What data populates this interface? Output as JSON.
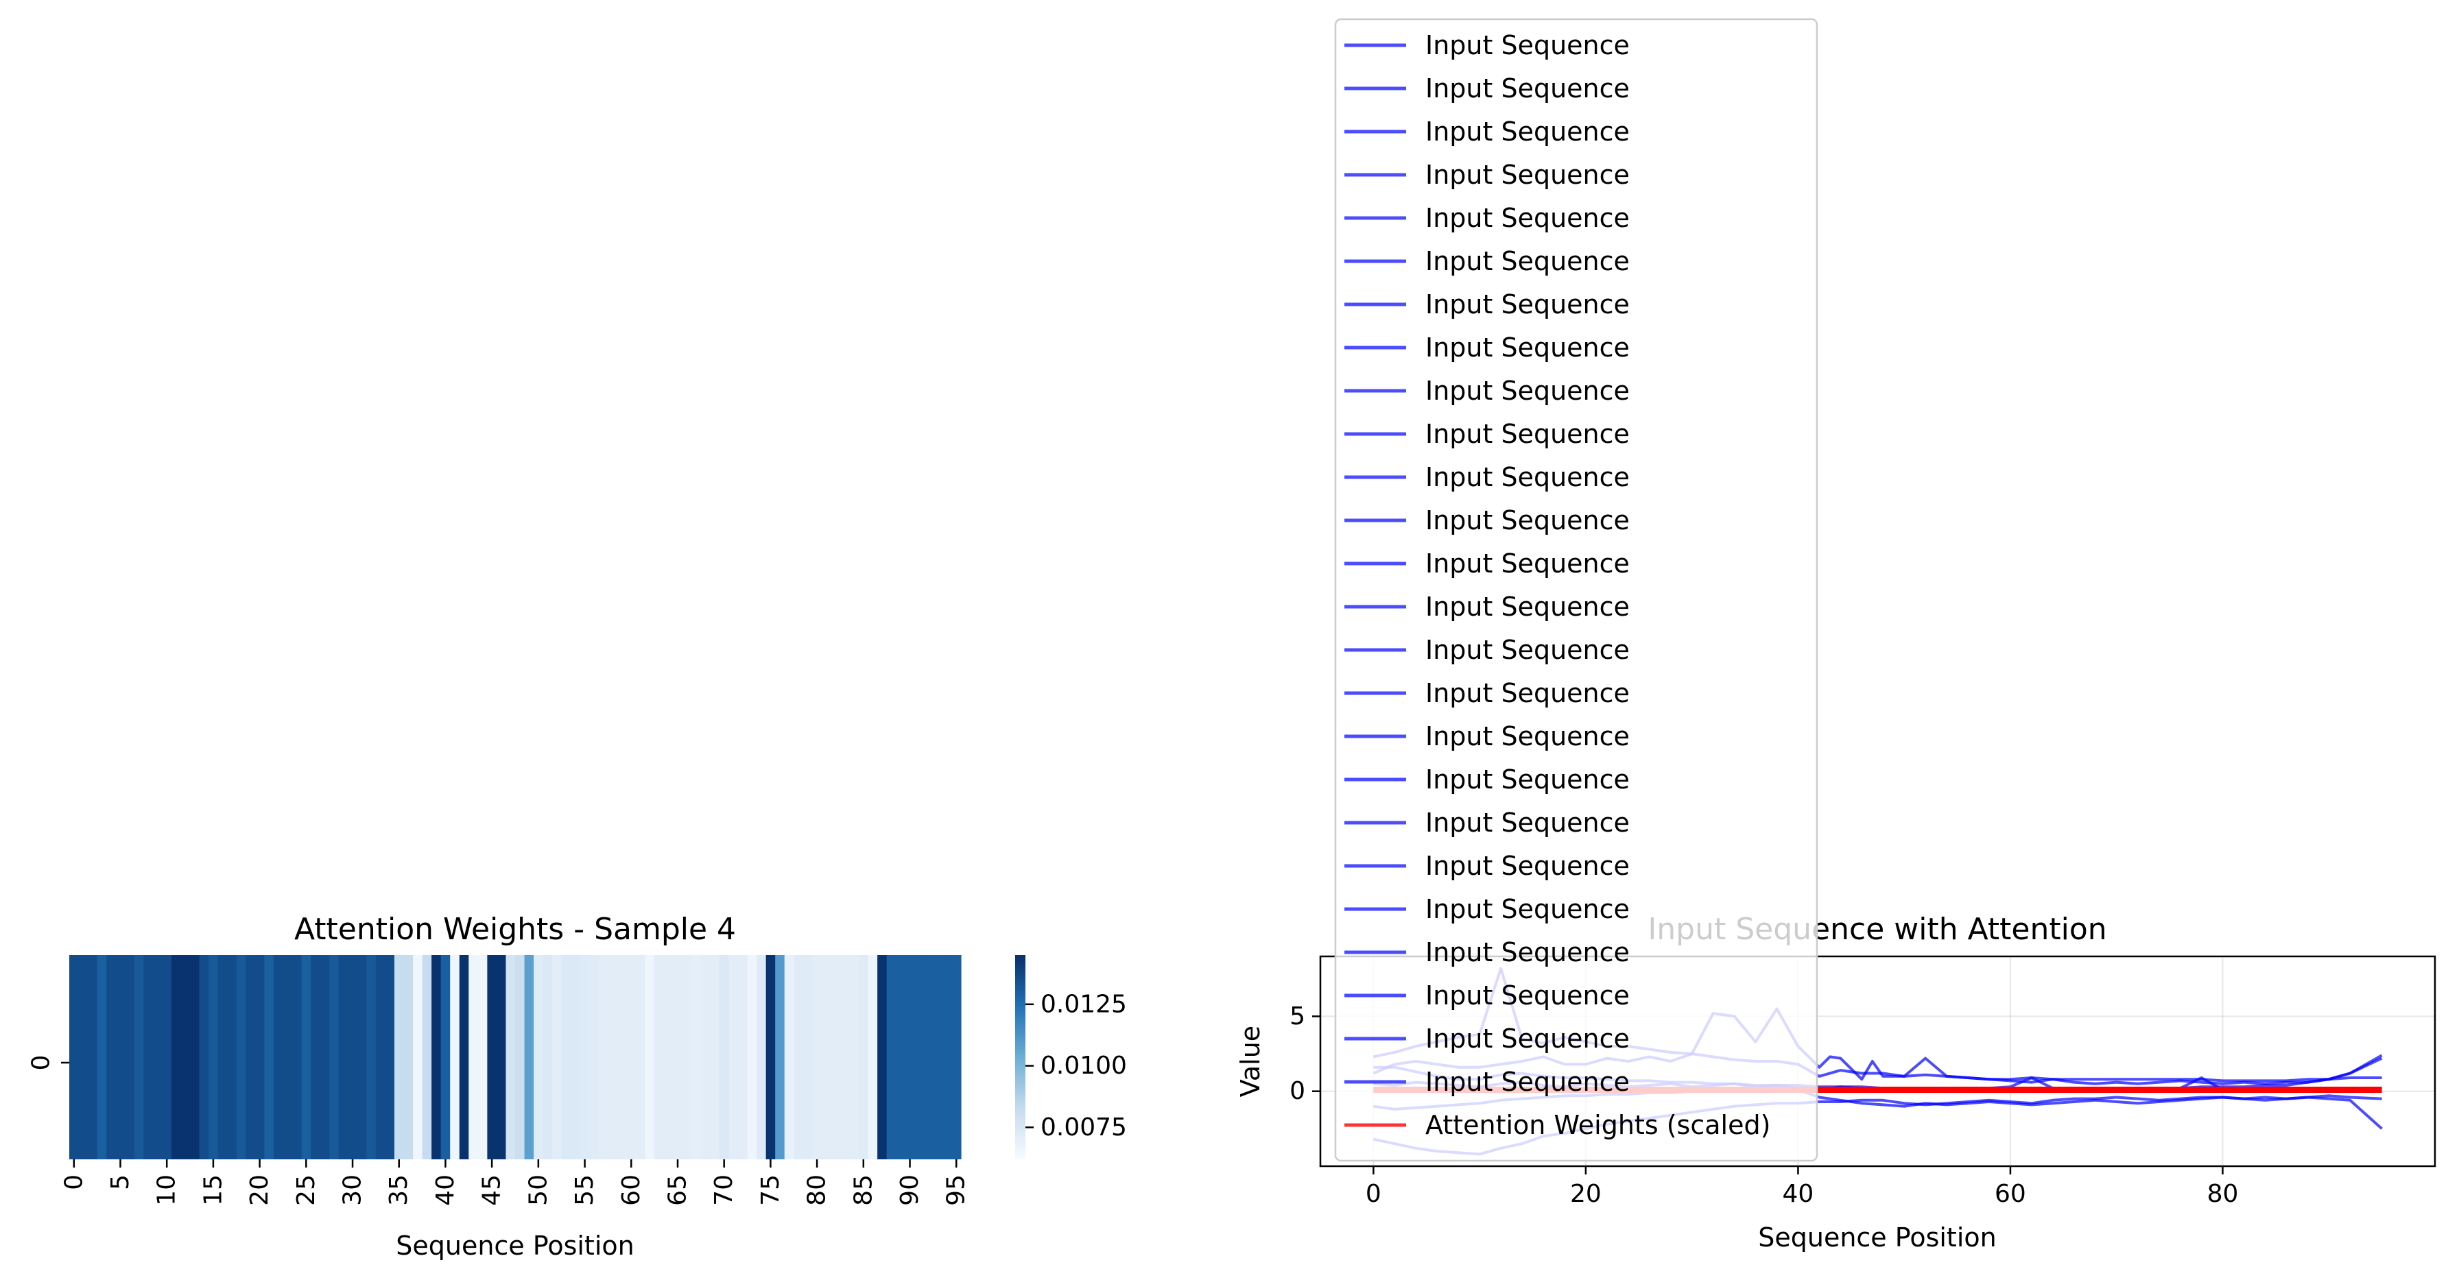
{
  "chart_data": [
    {
      "type": "heatmap",
      "title": "Attention Weights - Sample 4",
      "xlabel": "Sequence Position",
      "ylabel": "",
      "row_labels": [
        "0"
      ],
      "x_tick_labels": [
        "0",
        "5",
        "10",
        "15",
        "20",
        "25",
        "30",
        "35",
        "40",
        "45",
        "50",
        "55",
        "60",
        "65",
        "70",
        "75",
        "80",
        "85",
        "90",
        "95"
      ],
      "colormap": "Blues",
      "colorbar_range": [
        0.0062,
        0.0145
      ],
      "colorbar_ticks": [
        {
          "value": 0.0075,
          "label": "0.0075"
        },
        {
          "value": 0.01,
          "label": "0.0100"
        },
        {
          "value": 0.0125,
          "label": "0.0125"
        }
      ],
      "values": [
        0.0136,
        0.0136,
        0.0136,
        0.013,
        0.0136,
        0.0136,
        0.0136,
        0.0132,
        0.0136,
        0.0136,
        0.0136,
        0.0144,
        0.0144,
        0.0144,
        0.0136,
        0.0132,
        0.0136,
        0.0136,
        0.0132,
        0.0136,
        0.0136,
        0.013,
        0.0136,
        0.0136,
        0.0136,
        0.013,
        0.0136,
        0.0136,
        0.0132,
        0.0136,
        0.0136,
        0.0136,
        0.0132,
        0.0136,
        0.0136,
        0.0082,
        0.0082,
        0.0065,
        0.0082,
        0.0144,
        0.013,
        0.0066,
        0.0144,
        0.0066,
        0.0066,
        0.0144,
        0.0144,
        0.0077,
        0.008,
        0.0108,
        0.0072,
        0.0074,
        0.0071,
        0.0074,
        0.0074,
        0.0073,
        0.0072,
        0.0071,
        0.0071,
        0.0071,
        0.0071,
        0.0071,
        0.0066,
        0.0071,
        0.0071,
        0.0071,
        0.0071,
        0.007,
        0.0071,
        0.0071,
        0.0074,
        0.0071,
        0.0071,
        0.0066,
        0.0072,
        0.0144,
        0.011,
        0.0068,
        0.0072,
        0.0072,
        0.0071,
        0.0071,
        0.0071,
        0.0071,
        0.0071,
        0.0072,
        0.0066,
        0.0144,
        0.013,
        0.013,
        0.013,
        0.013,
        0.013,
        0.013,
        0.013,
        0.013
      ]
    },
    {
      "type": "line",
      "title": "Input Sequence with Attention",
      "xlabel": "Sequence Position",
      "ylabel": "Value",
      "xlim": [
        -5,
        100
      ],
      "ylim": [
        -5,
        9
      ],
      "x_ticks": [
        0,
        20,
        40,
        60,
        80
      ],
      "y_ticks": [
        0,
        5
      ],
      "grid": true,
      "legend_placement": "upper-center",
      "legend_entries": [
        "Input Sequence",
        "Input Sequence",
        "Input Sequence",
        "Input Sequence",
        "Input Sequence",
        "Input Sequence",
        "Input Sequence",
        "Input Sequence",
        "Input Sequence",
        "Input Sequence",
        "Input Sequence",
        "Input Sequence",
        "Input Sequence",
        "Input Sequence",
        "Input Sequence",
        "Input Sequence",
        "Input Sequence",
        "Input Sequence",
        "Input Sequence",
        "Input Sequence",
        "Input Sequence",
        "Input Sequence",
        "Input Sequence",
        "Input Sequence",
        "Input Sequence",
        "Attention Weights (scaled)"
      ],
      "series": [
        {
          "name": "Input Sequence",
          "color": "#0000ff",
          "x": [
            0,
            2,
            4,
            6,
            8,
            10,
            12,
            14,
            16,
            18,
            20,
            22,
            24,
            26,
            28,
            30,
            32,
            34,
            36,
            38,
            40,
            42,
            44,
            46,
            48,
            50,
            52,
            54,
            56,
            58,
            60,
            62,
            64,
            66,
            68,
            70,
            72,
            74,
            76,
            78,
            80,
            82,
            84,
            86,
            88,
            90,
            92,
            95
          ],
          "values": [
            2.3,
            2.6,
            3.0,
            3.3,
            3.6,
            3.8,
            8.2,
            3.5,
            3.2,
            3.6,
            3.3,
            3.0,
            3.0,
            2.8,
            2.6,
            2.5,
            2.3,
            2.1,
            2.0,
            2.0,
            1.8,
            1.0,
            1.4,
            1.2,
            1.2,
            1.0,
            1.1,
            1.0,
            0.9,
            0.8,
            0.8,
            0.9,
            0.8,
            0.8,
            0.8,
            0.8,
            0.8,
            0.8,
            0.8,
            0.8,
            0.7,
            0.7,
            0.7,
            0.7,
            0.8,
            0.8,
            0.9,
            0.9
          ]
        },
        {
          "name": "Input Sequence",
          "color": "#0000ff",
          "x": [
            0,
            2,
            4,
            6,
            8,
            10,
            12,
            14,
            16,
            18,
            20,
            22,
            24,
            26,
            28,
            30,
            32,
            34,
            36,
            38,
            40,
            42,
            43,
            44,
            46,
            47,
            48,
            50,
            52,
            54,
            56,
            58,
            60,
            62,
            64,
            66,
            68,
            70,
            72,
            74,
            76,
            78,
            80,
            82,
            84,
            86,
            88,
            90,
            92,
            95
          ],
          "values": [
            1.2,
            1.8,
            2.0,
            1.8,
            1.6,
            1.6,
            1.8,
            2.0,
            2.3,
            1.8,
            1.8,
            2.2,
            2.0,
            2.3,
            2.0,
            2.5,
            5.2,
            5.0,
            3.3,
            5.5,
            3.0,
            1.6,
            2.3,
            2.2,
            0.8,
            2.0,
            1.0,
            1.0,
            2.2,
            1.0,
            0.9,
            0.8,
            0.7,
            0.6,
            0.8,
            0.6,
            0.5,
            0.6,
            0.5,
            0.6,
            0.7,
            0.6,
            0.5,
            0.6,
            0.5,
            0.6,
            0.6,
            0.8,
            1.2,
            2.4
          ]
        },
        {
          "name": "Input Sequence",
          "color": "#0000ff",
          "x": [
            0,
            2,
            4,
            6,
            8,
            10,
            12,
            14,
            16,
            18,
            20,
            22,
            24,
            26,
            28,
            30,
            32,
            34,
            36,
            38,
            40,
            42,
            44,
            46,
            48,
            50,
            52,
            54,
            56,
            58,
            60,
            62,
            64,
            66,
            68,
            70,
            72,
            74,
            76,
            78,
            80,
            82,
            84,
            86,
            88,
            90,
            92,
            95
          ],
          "values": [
            -3.2,
            -3.5,
            -3.8,
            -4.0,
            -4.1,
            -4.2,
            -3.8,
            -3.5,
            -3.0,
            -2.8,
            -2.5,
            -2.2,
            -2.0,
            -1.8,
            -1.6,
            -1.4,
            -1.2,
            -1.0,
            -0.9,
            -0.8,
            -0.8,
            -0.7,
            -0.7,
            -0.6,
            -0.6,
            -0.8,
            -0.9,
            -0.8,
            -0.7,
            -0.6,
            -0.7,
            -0.8,
            -0.6,
            -0.5,
            -0.5,
            -0.4,
            -0.5,
            -0.6,
            -0.5,
            -0.4,
            -0.4,
            -0.5,
            -0.6,
            -0.5,
            -0.4,
            -0.5,
            -0.6,
            -2.5
          ]
        },
        {
          "name": "Input Sequence",
          "color": "#0000ff",
          "x": [
            0,
            2,
            4,
            6,
            8,
            10,
            12,
            14,
            16,
            18,
            20,
            22,
            24,
            26,
            28,
            30,
            32,
            34,
            36,
            38,
            40,
            42,
            44,
            46,
            48,
            50,
            52,
            54,
            56,
            58,
            60,
            62,
            64,
            66,
            68,
            70,
            72,
            74,
            76,
            78,
            80,
            82,
            84,
            86,
            88,
            90,
            92,
            95
          ],
          "values": [
            1.6,
            1.6,
            1.3,
            1.0,
            0.8,
            0.8,
            1.1,
            1.2,
            1.0,
            0.9,
            0.9,
            0.8,
            0.7,
            0.7,
            0.6,
            0.6,
            0.5,
            0.5,
            0.4,
            0.4,
            0.4,
            0.3,
            0.3,
            0.3,
            0.2,
            0.2,
            0.2,
            0.2,
            0.1,
            0.1,
            0.1,
            0.1,
            0.2,
            0.2,
            0.2,
            0.1,
            0.1,
            0.2,
            0.2,
            0.3,
            0.3,
            0.3,
            0.4,
            0.4,
            0.6,
            0.8,
            1.2,
            2.2
          ]
        },
        {
          "name": "Input Sequence",
          "color": "#0000ff",
          "x": [
            0,
            2,
            4,
            6,
            8,
            10,
            12,
            14,
            16,
            18,
            20,
            22,
            24,
            26,
            28,
            30,
            32,
            34,
            36,
            38,
            40,
            42,
            44,
            46,
            48,
            50,
            52,
            54,
            56,
            58,
            60,
            62,
            64,
            66,
            68,
            70,
            72,
            74,
            76,
            78,
            80,
            82,
            84,
            86,
            88,
            90,
            92,
            95
          ],
          "values": [
            -1.0,
            -1.2,
            -1.1,
            -1.0,
            -0.9,
            -0.8,
            -0.6,
            -0.5,
            -0.4,
            -0.3,
            -0.3,
            -0.2,
            -0.2,
            -0.1,
            -0.1,
            0.0,
            0.0,
            0.1,
            0.1,
            0.1,
            0.1,
            -0.4,
            -0.6,
            -0.8,
            -0.9,
            -1.0,
            -0.8,
            -0.9,
            -0.8,
            -0.7,
            -0.8,
            -0.9,
            -0.8,
            -0.7,
            -0.6,
            -0.7,
            -0.8,
            -0.7,
            -0.6,
            -0.5,
            -0.4,
            -0.5,
            -0.4,
            -0.5,
            -0.4,
            -0.3,
            -0.4,
            -0.5
          ]
        },
        {
          "name": "Input Sequence",
          "color": "#0000ff",
          "x": [
            0,
            2,
            4,
            6,
            8,
            10,
            12,
            14,
            16,
            18,
            20,
            22,
            24,
            26,
            28,
            30,
            32,
            34,
            36,
            38,
            40,
            42,
            44,
            46,
            48,
            50,
            52,
            54,
            56,
            58,
            60,
            62,
            64,
            66,
            68,
            70,
            72,
            74,
            76,
            78,
            80,
            82,
            84,
            86,
            88,
            90,
            92,
            95
          ],
          "values": [
            0.5,
            0.4,
            0.6,
            0.5,
            0.4,
            0.3,
            0.5,
            0.6,
            0.4,
            0.3,
            0.5,
            0.4,
            0.3,
            0.4,
            0.5,
            0.3,
            0.4,
            0.5,
            0.3,
            0.4,
            0.2,
            0.1,
            0.3,
            0.2,
            0.1,
            0.2,
            0.1,
            0.0,
            0.1,
            0.2,
            0.3,
            0.9,
            0.2,
            0.1,
            0.2,
            0.1,
            0.0,
            0.1,
            0.2,
            0.9,
            0.1,
            0.0,
            0.1,
            0.0,
            0.1,
            0.2,
            0.1,
            0.2
          ]
        },
        {
          "name": "Attention Weights (scaled)",
          "color": "#ff0000",
          "x": [
            0,
            2,
            4,
            6,
            8,
            10,
            12,
            14,
            16,
            18,
            20,
            22,
            24,
            26,
            28,
            30,
            32,
            34,
            36,
            38,
            40,
            42,
            44,
            46,
            48,
            50,
            52,
            54,
            56,
            58,
            60,
            62,
            64,
            66,
            68,
            70,
            72,
            74,
            76,
            78,
            80,
            82,
            84,
            86,
            88,
            90,
            92,
            95
          ],
          "values": [
            0.1,
            0.1,
            0.1,
            0.1,
            0.1,
            0.1,
            0.1,
            0.1,
            0.1,
            0.1,
            0.1,
            0.1,
            0.1,
            0.1,
            0.1,
            0.1,
            0.1,
            0.1,
            0.1,
            0.1,
            0.1,
            0.1,
            0.1,
            0.1,
            0.1,
            0.1,
            0.1,
            0.1,
            0.1,
            0.1,
            0.1,
            0.1,
            0.1,
            0.1,
            0.1,
            0.1,
            0.1,
            0.1,
            0.1,
            0.1,
            0.1,
            0.1,
            0.1,
            0.1,
            0.1,
            0.1,
            0.1,
            0.1
          ]
        }
      ]
    }
  ]
}
